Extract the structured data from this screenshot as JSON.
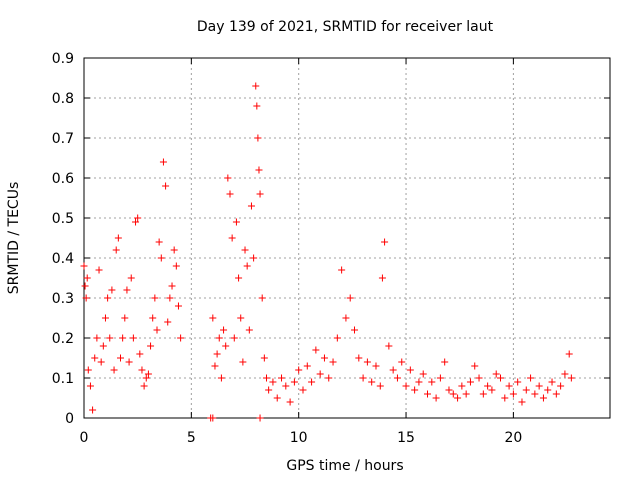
{
  "chart_data": {
    "type": "scatter",
    "title": "Day 139 of 2021, SRMTID for receiver laut",
    "xlabel": "GPS time / hours",
    "ylabel": "SRMTID / TECUs",
    "xlim": [
      0,
      24.5
    ],
    "ylim": [
      0,
      0.9
    ],
    "xticks": [
      0,
      5,
      10,
      15,
      20
    ],
    "yticks": [
      0,
      0.1,
      0.2,
      0.3,
      0.4,
      0.5,
      0.6,
      0.7,
      0.8,
      0.9
    ],
    "ytick_labels": [
      "0",
      "0.1",
      "0.2",
      "0.3",
      "0.4",
      "0.5",
      "0.6",
      "0.7",
      "0.8",
      "0.9"
    ],
    "grid": true,
    "marker": "plus",
    "series_color": "#ff0000",
    "series": [
      {
        "name": "laut",
        "x": [
          0.0,
          0.05,
          0.1,
          0.15,
          0.2,
          0.3,
          0.4,
          0.5,
          0.6,
          0.7,
          0.8,
          0.9,
          1.0,
          1.1,
          1.2,
          1.3,
          1.4,
          1.5,
          1.6,
          1.7,
          1.8,
          1.9,
          2.0,
          2.1,
          2.2,
          2.3,
          2.4,
          2.5,
          2.6,
          2.7,
          2.8,
          2.9,
          3.0,
          3.1,
          3.2,
          3.3,
          3.4,
          3.5,
          3.6,
          3.7,
          3.8,
          3.9,
          4.0,
          4.1,
          4.2,
          4.3,
          4.4,
          4.5,
          6.0,
          6.1,
          6.2,
          6.3,
          6.4,
          6.5,
          6.6,
          6.7,
          6.8,
          6.9,
          7.0,
          7.1,
          7.2,
          7.3,
          7.4,
          7.5,
          7.6,
          7.7,
          7.8,
          7.9,
          8.0,
          8.05,
          8.1,
          8.15,
          8.2,
          8.3,
          8.4,
          8.5,
          8.6,
          8.8,
          9.0,
          9.2,
          9.4,
          9.6,
          9.8,
          10.0,
          10.2,
          10.4,
          10.6,
          10.8,
          11.0,
          11.2,
          11.4,
          11.6,
          11.8,
          12.0,
          12.2,
          12.4,
          12.6,
          12.8,
          13.0,
          13.2,
          13.4,
          13.6,
          13.8,
          13.9,
          14.0,
          14.2,
          14.4,
          14.6,
          14.8,
          15.0,
          15.2,
          15.4,
          15.6,
          15.8,
          16.0,
          16.2,
          16.4,
          16.6,
          16.8,
          17.0,
          17.2,
          17.4,
          17.6,
          17.8,
          18.0,
          18.2,
          18.4,
          18.6,
          18.8,
          19.0,
          19.2,
          19.4,
          19.6,
          19.8,
          20.0,
          20.2,
          20.4,
          20.6,
          20.8,
          21.0,
          21.2,
          21.4,
          21.6,
          21.8,
          22.0,
          22.2,
          22.4,
          22.6,
          22.7,
          5.9,
          6.0,
          8.2
        ],
        "y": [
          0.38,
          0.33,
          0.3,
          0.35,
          0.12,
          0.08,
          0.02,
          0.15,
          0.2,
          0.37,
          0.14,
          0.18,
          0.25,
          0.3,
          0.2,
          0.32,
          0.12,
          0.42,
          0.45,
          0.15,
          0.2,
          0.25,
          0.32,
          0.14,
          0.35,
          0.2,
          0.49,
          0.5,
          0.16,
          0.12,
          0.08,
          0.1,
          0.11,
          0.18,
          0.25,
          0.3,
          0.22,
          0.44,
          0.4,
          0.64,
          0.58,
          0.24,
          0.3,
          0.33,
          0.42,
          0.38,
          0.28,
          0.2,
          0.25,
          0.13,
          0.16,
          0.2,
          0.1,
          0.22,
          0.18,
          0.6,
          0.56,
          0.45,
          0.2,
          0.49,
          0.35,
          0.25,
          0.14,
          0.42,
          0.38,
          0.22,
          0.53,
          0.4,
          0.83,
          0.78,
          0.7,
          0.62,
          0.56,
          0.3,
          0.15,
          0.1,
          0.07,
          0.09,
          0.05,
          0.1,
          0.08,
          0.04,
          0.09,
          0.12,
          0.07,
          0.13,
          0.09,
          0.17,
          0.11,
          0.15,
          0.1,
          0.14,
          0.2,
          0.37,
          0.25,
          0.3,
          0.22,
          0.15,
          0.1,
          0.14,
          0.09,
          0.13,
          0.08,
          0.35,
          0.44,
          0.18,
          0.12,
          0.1,
          0.14,
          0.08,
          0.12,
          0.07,
          0.09,
          0.11,
          0.06,
          0.09,
          0.05,
          0.1,
          0.14,
          0.07,
          0.06,
          0.05,
          0.08,
          0.06,
          0.09,
          0.13,
          0.1,
          0.06,
          0.08,
          0.07,
          0.11,
          0.1,
          0.05,
          0.08,
          0.06,
          0.09,
          0.04,
          0.07,
          0.1,
          0.06,
          0.08,
          0.05,
          0.07,
          0.09,
          0.06,
          0.08,
          0.11,
          0.16,
          0.1,
          0.0,
          0.0,
          0.0
        ]
      }
    ]
  }
}
